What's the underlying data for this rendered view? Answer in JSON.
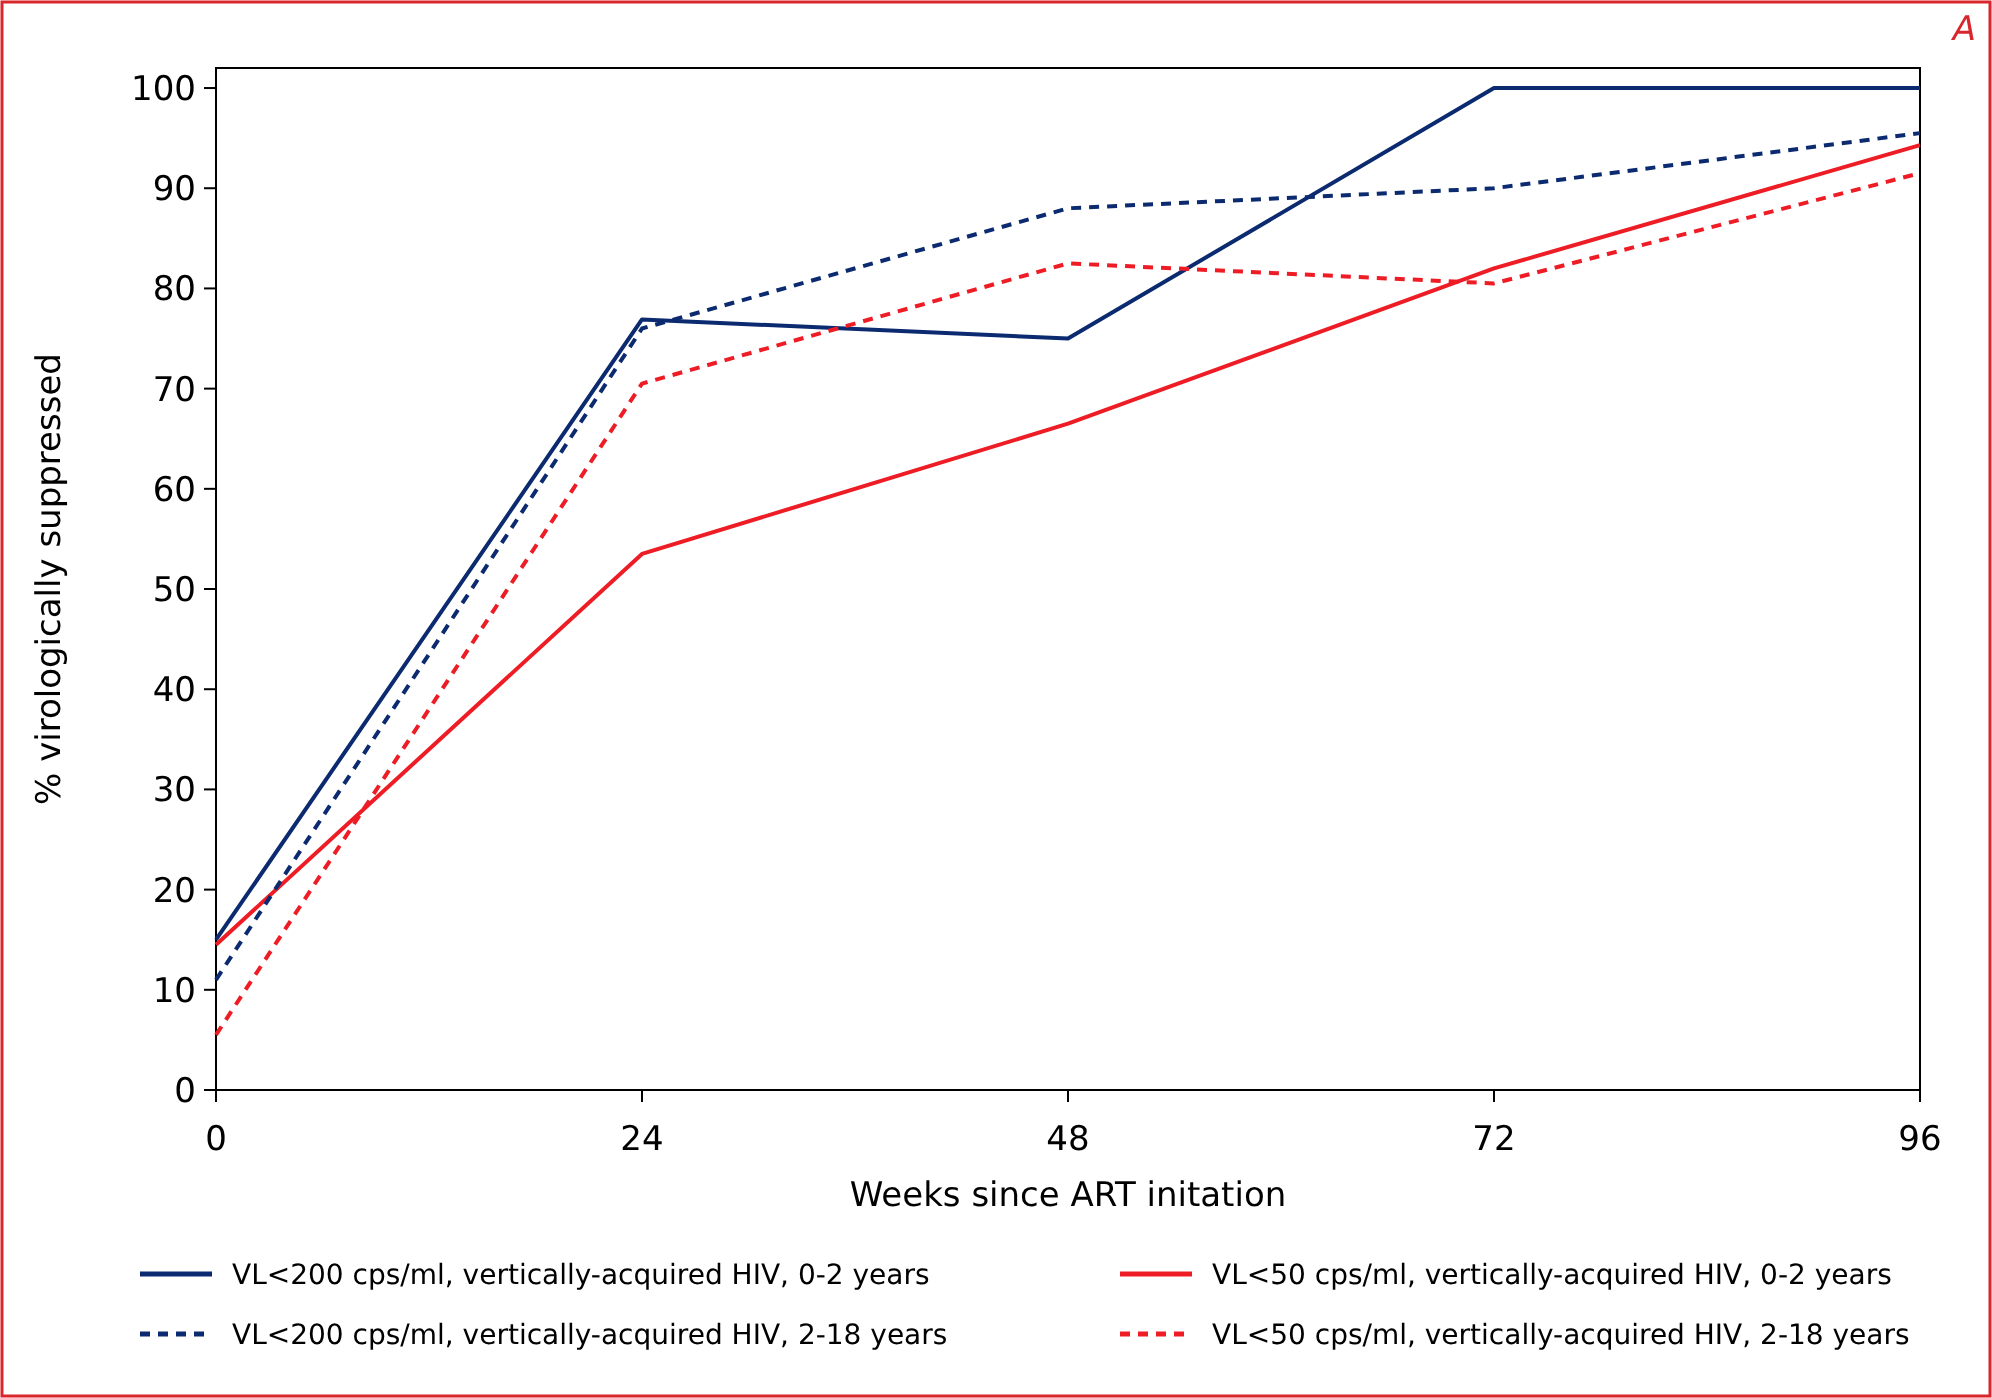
{
  "chart_data": {
    "type": "line",
    "xlabel": "Weeks since ART initation",
    "ylabel": "% virologically suppressed",
    "annotations": [
      "A"
    ],
    "x": [
      0,
      24,
      48,
      72,
      96
    ],
    "xlim": [
      0,
      96
    ],
    "xticks": [
      0,
      24,
      48,
      72,
      96
    ],
    "ylim": [
      0,
      102
    ],
    "yticks": [
      0,
      10,
      20,
      30,
      40,
      50,
      60,
      70,
      80,
      90,
      100
    ],
    "grid": false,
    "legend": "bottom",
    "series": [
      {
        "name": "VL<200 cps/ml, vertically-acquired HIV, 0-2 years",
        "color": "#0b2a6f",
        "line_style": "solid",
        "values": [
          15,
          76.9,
          75,
          100,
          100
        ]
      },
      {
        "name": "VL<50 cps/ml, vertically-acquired HIV, 0-2 years",
        "color": "#ee1c25",
        "line_style": "solid",
        "values": [
          14.5,
          53.5,
          66.5,
          82,
          94.3
        ]
      },
      {
        "name": "VL<200 cps/ml, vertically-acquired HIV, 2-18 years",
        "color": "#0b2a6f",
        "line_style": "dashed",
        "values": [
          11,
          76,
          88,
          90,
          95.5
        ]
      },
      {
        "name": "VL<50 cps/ml, vertically-acquired HIV, 2-18 years",
        "color": "#ee1c25",
        "line_style": "dashed",
        "values": [
          5.5,
          70.5,
          82.5,
          80.5,
          91.5
        ]
      }
    ]
  }
}
